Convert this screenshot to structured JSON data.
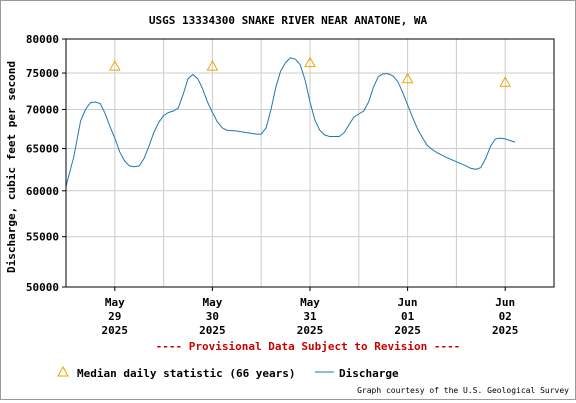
{
  "chart_data": {
    "type": "line",
    "title": "USGS 13334300 SNAKE RIVER NEAR ANATONE, WA",
    "ylabel": "Discharge, cubic feet per second",
    "xlabel": "",
    "y_scale": "log",
    "ylim": [
      50000,
      80000
    ],
    "y_ticks": [
      {
        "value": 50000,
        "label": "50000"
      },
      {
        "value": 55000,
        "label": "55000"
      },
      {
        "value": 60000,
        "label": "60000"
      },
      {
        "value": 65000,
        "label": "65000"
      },
      {
        "value": 70000,
        "label": "70000"
      },
      {
        "value": 75000,
        "label": "75000"
      },
      {
        "value": 80000,
        "label": "80000"
      }
    ],
    "xlim_days": [
      -0.5,
      4.5
    ],
    "x_ticks": [
      {
        "day": 0,
        "month": "May",
        "date": "29",
        "year": "2025"
      },
      {
        "day": 1,
        "month": "May",
        "date": "30",
        "year": "2025"
      },
      {
        "day": 2,
        "month": "May",
        "date": "31",
        "year": "2025"
      },
      {
        "day": 3,
        "month": "Jun",
        "date": "01",
        "year": "2025"
      },
      {
        "day": 4,
        "month": "Jun",
        "date": "02",
        "year": "2025"
      }
    ],
    "grid": true,
    "series": [
      {
        "name": "Discharge",
        "color": "#1f77b4",
        "points": [
          [
            -0.5,
            60500
          ],
          [
            -0.42,
            64000
          ],
          [
            -0.35,
            68500
          ],
          [
            -0.3,
            70000
          ],
          [
            -0.25,
            70900
          ],
          [
            -0.2,
            71000
          ],
          [
            -0.15,
            70800
          ],
          [
            -0.1,
            69500
          ],
          [
            -0.05,
            67800
          ],
          [
            0.0,
            66300
          ],
          [
            0.05,
            64600
          ],
          [
            0.1,
            63500
          ],
          [
            0.15,
            62900
          ],
          [
            0.2,
            62800
          ],
          [
            0.25,
            62900
          ],
          [
            0.3,
            63800
          ],
          [
            0.35,
            65300
          ],
          [
            0.4,
            67000
          ],
          [
            0.45,
            68300
          ],
          [
            0.5,
            69200
          ],
          [
            0.55,
            69600
          ],
          [
            0.6,
            69800
          ],
          [
            0.65,
            70200
          ],
          [
            0.7,
            72000
          ],
          [
            0.75,
            74200
          ],
          [
            0.8,
            74800
          ],
          [
            0.85,
            74200
          ],
          [
            0.9,
            72800
          ],
          [
            0.95,
            71000
          ],
          [
            1.0,
            69600
          ],
          [
            1.05,
            68400
          ],
          [
            1.1,
            67600
          ],
          [
            1.15,
            67300
          ],
          [
            1.25,
            67200
          ],
          [
            1.35,
            67000
          ],
          [
            1.45,
            66800
          ],
          [
            1.5,
            66800
          ],
          [
            1.55,
            67600
          ],
          [
            1.6,
            70000
          ],
          [
            1.65,
            73000
          ],
          [
            1.7,
            75300
          ],
          [
            1.75,
            76500
          ],
          [
            1.8,
            77200
          ],
          [
            1.85,
            77000
          ],
          [
            1.9,
            76200
          ],
          [
            1.95,
            74000
          ],
          [
            2.0,
            71000
          ],
          [
            2.05,
            68600
          ],
          [
            2.1,
            67300
          ],
          [
            2.15,
            66700
          ],
          [
            2.2,
            66500
          ],
          [
            2.3,
            66500
          ],
          [
            2.35,
            67000
          ],
          [
            2.4,
            68000
          ],
          [
            2.45,
            69000
          ],
          [
            2.5,
            69400
          ],
          [
            2.55,
            69800
          ],
          [
            2.6,
            71000
          ],
          [
            2.65,
            73000
          ],
          [
            2.7,
            74500
          ],
          [
            2.75,
            74900
          ],
          [
            2.8,
            74900
          ],
          [
            2.85,
            74600
          ],
          [
            2.9,
            73800
          ],
          [
            2.95,
            72300
          ],
          [
            3.0,
            70600
          ],
          [
            3.05,
            69000
          ],
          [
            3.1,
            67500
          ],
          [
            3.15,
            66400
          ],
          [
            3.2,
            65400
          ],
          [
            3.25,
            64900
          ],
          [
            3.3,
            64500
          ],
          [
            3.4,
            63900
          ],
          [
            3.5,
            63400
          ],
          [
            3.6,
            62900
          ],
          [
            3.65,
            62600
          ],
          [
            3.7,
            62500
          ],
          [
            3.75,
            62700
          ],
          [
            3.8,
            63800
          ],
          [
            3.85,
            65300
          ],
          [
            3.9,
            66200
          ],
          [
            3.95,
            66300
          ],
          [
            4.0,
            66200
          ],
          [
            4.05,
            66000
          ],
          [
            4.1,
            65800
          ]
        ]
      },
      {
        "name": "Median daily statistic (66 years)",
        "color": "#e8a800",
        "points": [
          [
            0,
            76000
          ],
          [
            1,
            76000
          ],
          [
            2,
            76500
          ],
          [
            3,
            74200
          ],
          [
            4,
            73700
          ]
        ]
      }
    ],
    "legend": {
      "placement": "bottom",
      "median_label": "Median daily statistic (66 years)",
      "discharge_label": "Discharge"
    },
    "annotations": {
      "provisional": "---- Provisional Data Subject to Revision ----",
      "credit": "Graph courtesy of the U.S. Geological Survey"
    },
    "colors": {
      "discharge_line": "#1f77b4",
      "median_marker": "#e8a800",
      "grid": "#cccccc",
      "provisional_text": "#cc0000"
    }
  }
}
